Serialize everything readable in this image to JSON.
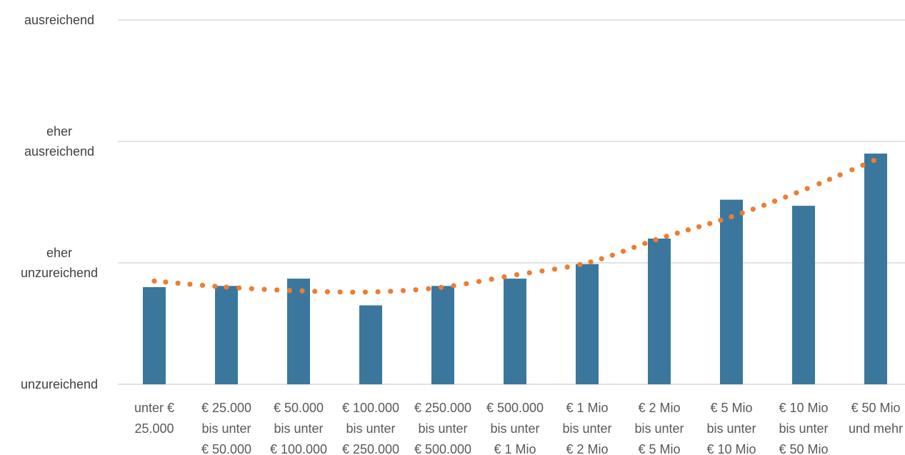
{
  "chart_data": {
    "type": "bar",
    "title": "",
    "xlabel": "",
    "ylabel": "",
    "categories": [
      [
        "unter €",
        "25.000"
      ],
      [
        "€ 25.000",
        "bis unter",
        "€ 50.000"
      ],
      [
        "€ 50.000",
        "bis unter",
        "€ 100.000"
      ],
      [
        "€ 100.000",
        "bis unter",
        "€ 250.000"
      ],
      [
        "€ 250.000",
        "bis unter",
        "€ 500.000"
      ],
      [
        "€ 500.000",
        "bis unter",
        "€ 1 Mio"
      ],
      [
        "€ 1 Mio",
        "bis unter",
        "€ 2 Mio"
      ],
      [
        "€ 2 Mio",
        "bis unter",
        "€ 5 Mio"
      ],
      [
        "€ 5 Mio",
        "bis unter",
        "€ 10 Mio"
      ],
      [
        "€ 10 Mio",
        "bis unter",
        "€ 50 Mio"
      ],
      [
        "€ 50 Mio",
        "und mehr"
      ]
    ],
    "y_tick_labels": [
      [
        "unzureichend"
      ],
      [
        "eher",
        "unzureichend"
      ],
      [
        "eher",
        "ausreichend"
      ],
      [
        "ausreichend"
      ]
    ],
    "ylim": [
      1,
      4
    ],
    "grid": true,
    "series": [
      {
        "values": [
          1.8,
          1.81,
          1.87,
          1.65,
          1.81,
          1.87,
          1.99,
          2.2,
          2.52,
          2.47,
          2.9
        ],
        "color": "#3b779d"
      }
    ],
    "trendline": {
      "type": "polynomial",
      "style": "dotted",
      "color": "#ed7d31",
      "values": [
        1.85,
        1.8,
        1.77,
        1.76,
        1.8,
        1.9,
        2.0,
        2.2,
        2.38,
        2.6,
        2.85
      ]
    }
  }
}
